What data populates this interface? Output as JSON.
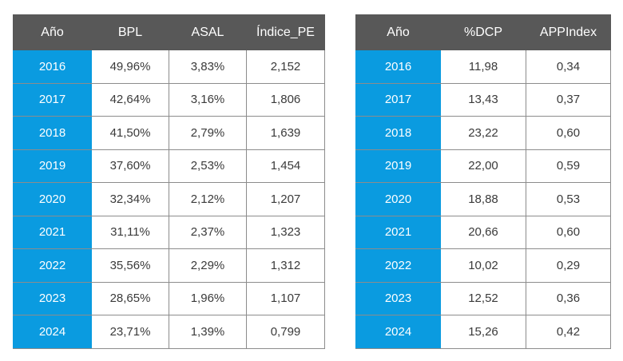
{
  "chart_data": [
    {
      "type": "table",
      "columns": [
        "Año",
        "BPL",
        "ASAL",
        "Índice_PE"
      ],
      "rows": [
        [
          "2016",
          "49,96%",
          "3,83%",
          "2,152"
        ],
        [
          "2017",
          "42,64%",
          "3,16%",
          "1,806"
        ],
        [
          "2018",
          "41,50%",
          "2,79%",
          "1,639"
        ],
        [
          "2019",
          "37,60%",
          "2,53%",
          "1,454"
        ],
        [
          "2020",
          "32,34%",
          "2,12%",
          "1,207"
        ],
        [
          "2021",
          "31,11%",
          "2,37%",
          "1,323"
        ],
        [
          "2022",
          "35,56%",
          "2,29%",
          "1,312"
        ],
        [
          "2023",
          "28,65%",
          "1,96%",
          "1,107"
        ],
        [
          "2024",
          "23,71%",
          "1,39%",
          "0,799"
        ]
      ]
    },
    {
      "type": "table",
      "columns": [
        "Año",
        "%DCP",
        "APPIndex"
      ],
      "rows": [
        [
          "2016",
          "11,98",
          "0,34"
        ],
        [
          "2017",
          "13,43",
          "0,37"
        ],
        [
          "2018",
          "23,22",
          "0,60"
        ],
        [
          "2019",
          "22,00",
          "0,59"
        ],
        [
          "2020",
          "18,88",
          "0,53"
        ],
        [
          "2021",
          "20,66",
          "0,60"
        ],
        [
          "2022",
          "10,02",
          "0,29"
        ],
        [
          "2023",
          "12,52",
          "0,36"
        ],
        [
          "2024",
          "15,26",
          "0,42"
        ]
      ]
    }
  ],
  "colors": {
    "header_bg": "#585858",
    "year_cell_bg": "#0a9be0",
    "cell_border": "#8c8c8c",
    "cell_text": "#3a3a3a"
  }
}
